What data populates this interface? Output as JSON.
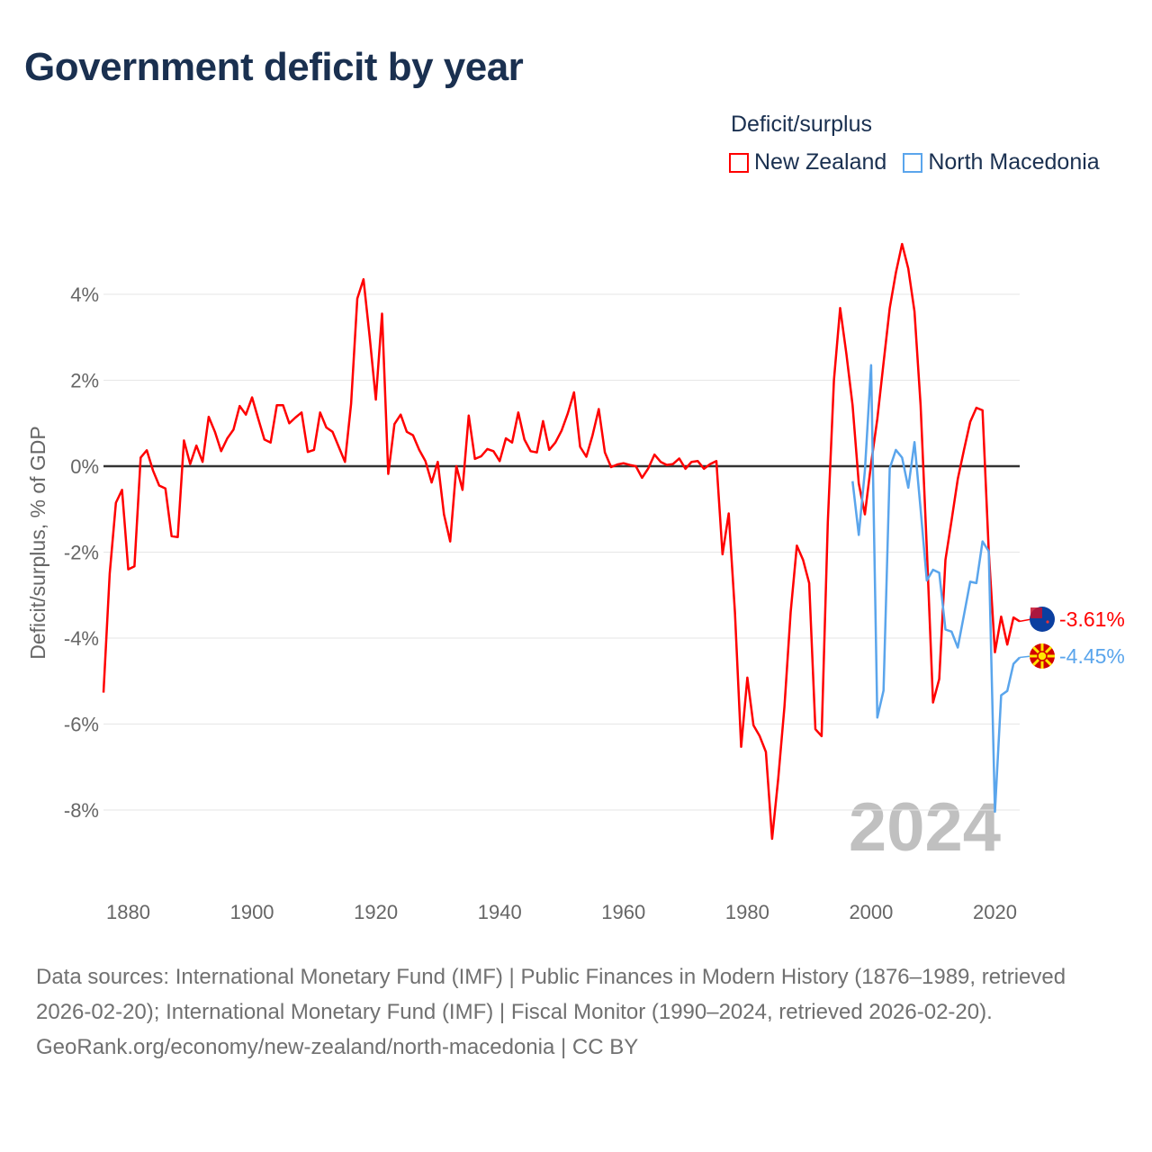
{
  "title": "Government deficit by year",
  "legend": {
    "title": "Deficit/surplus",
    "items": [
      {
        "label": "New Zealand",
        "color": "#ff0000"
      },
      {
        "label": "North Macedonia",
        "color": "#5aa5ec"
      }
    ]
  },
  "chart_data": {
    "type": "line",
    "title": "Government deficit by year",
    "ylabel": "Deficit/surplus, % of GDP",
    "xlabel": "",
    "xlim": [
      1876,
      2024
    ],
    "ylim": [
      -9.8,
      5.5
    ],
    "x_ticks": [
      1880,
      1900,
      1920,
      1940,
      1960,
      1980,
      2000,
      2020
    ],
    "y_ticks": [
      4,
      2,
      0,
      -2,
      -4,
      -6,
      -8
    ],
    "y_tick_labels": [
      "4%",
      "2%",
      "0%",
      "-2%",
      "-4%",
      "-6%",
      "-8%"
    ],
    "x_tick_labels": [
      "1880",
      "1900",
      "1920",
      "1940",
      "1960",
      "1980",
      "2000",
      "2020"
    ],
    "grid": true,
    "legend_position": "top-right",
    "year_watermark": "2024",
    "series": [
      {
        "name": "New Zealand",
        "color": "#ff0000",
        "start_year": 1876,
        "end_label": "-3.61%",
        "values": [
          -5.27,
          -2.5,
          -0.85,
          -0.55,
          -2.4,
          -2.33,
          0.2,
          0.37,
          -0.1,
          -0.45,
          -0.52,
          -1.63,
          -1.65,
          0.6,
          0.05,
          0.48,
          0.1,
          1.15,
          0.8,
          0.35,
          0.65,
          0.85,
          1.4,
          1.2,
          1.6,
          1.1,
          0.62,
          0.55,
          1.42,
          1.42,
          1.0,
          1.13,
          1.25,
          0.33,
          0.38,
          1.25,
          0.9,
          0.8,
          0.45,
          0.1,
          1.45,
          3.9,
          4.35,
          3.0,
          1.55,
          3.55,
          -0.18,
          0.98,
          1.2,
          0.8,
          0.72,
          0.38,
          0.12,
          -0.38,
          0.1,
          -1.12,
          -1.75,
          0.0,
          -0.55,
          1.18,
          0.17,
          0.23,
          0.4,
          0.35,
          0.12,
          0.65,
          0.55,
          1.25,
          0.62,
          0.35,
          0.32,
          1.05,
          0.38,
          0.55,
          0.83,
          1.23,
          1.72,
          0.45,
          0.22,
          0.72,
          1.33,
          0.32,
          -0.02,
          0.04,
          0.07,
          0.03,
          0.0,
          -0.27,
          -0.05,
          0.27,
          0.1,
          0.03,
          0.05,
          0.18,
          -0.06,
          0.1,
          0.12,
          -0.06,
          0.05,
          0.12,
          -2.05,
          -1.1,
          -3.4,
          -6.53,
          -4.92,
          -6.03,
          -6.28,
          -6.65,
          -8.67,
          -7.27,
          -5.6,
          -3.4,
          -1.85,
          -2.18,
          -2.72,
          -6.12,
          -6.28,
          -1.3,
          2.0,
          3.68,
          2.62,
          1.42,
          -0.4,
          -1.12,
          0.06,
          1.1,
          2.4,
          3.68,
          4.5,
          5.17,
          4.6,
          3.6,
          1.42,
          -1.92,
          -5.5,
          -4.95,
          -2.18,
          -1.26,
          -0.3,
          0.38,
          1.03,
          1.36,
          1.3,
          -1.97,
          -4.33,
          -3.5,
          -4.15,
          -3.52,
          -3.61
        ]
      },
      {
        "name": "North Macedonia",
        "color": "#5aa5ec",
        "start_year": 1997,
        "end_label": "-4.45%",
        "values": [
          -0.35,
          -1.6,
          -0.1,
          2.35,
          -5.85,
          -5.22,
          -0.05,
          0.38,
          0.2,
          -0.5,
          0.56,
          -1.0,
          -2.66,
          -2.41,
          -2.48,
          -3.8,
          -3.85,
          -4.22,
          -3.46,
          -2.69,
          -2.72,
          -1.75,
          -1.98,
          -8.04,
          -5.33,
          -5.23,
          -4.6,
          -4.45
        ]
      }
    ]
  },
  "footer": {
    "sources": "Data sources: International Monetary Fund (IMF) | Public Finances in Modern History (1876–1989, retrieved 2026-02-20); International Monetary Fund (IMF) | Fiscal Monitor (1990–2024, retrieved 2026-02-20).",
    "credit": "GeoRank.org/economy/new-zealand/north-macedonia | CC BY"
  }
}
